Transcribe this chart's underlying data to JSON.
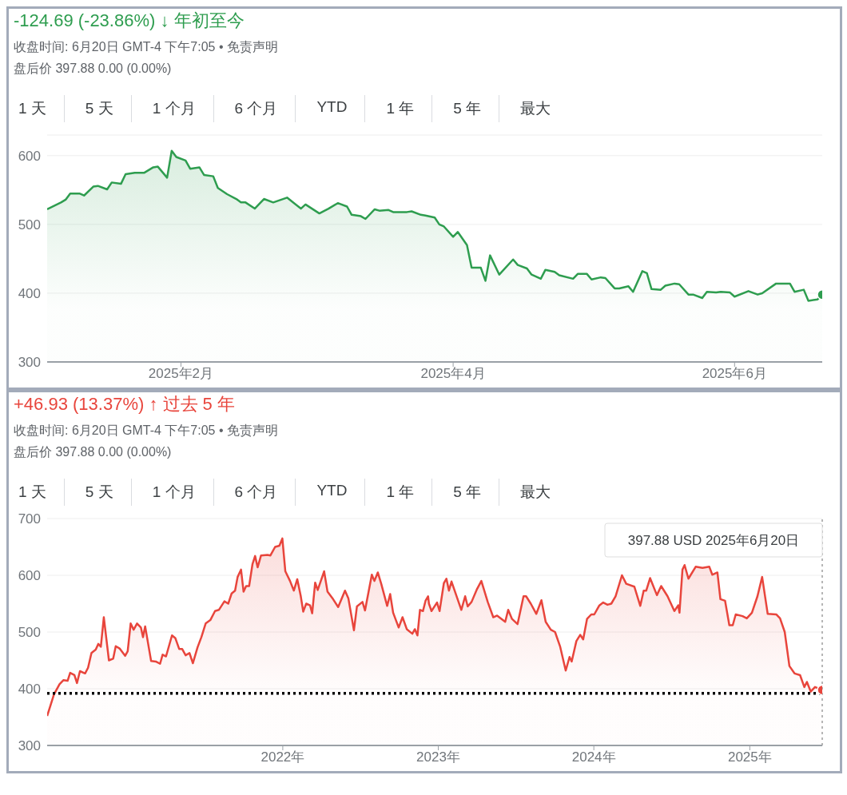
{
  "chart_data": [
    {
      "type": "area",
      "title": "-124.69 (-23.86%) ↓ 年初至今",
      "subtitle": "收盘时间: 6月20日 GMT-4 下午7:05 • 免责声明",
      "annotations": [
        "盘后价 397.88 0.00 (0.00%)",
        "1 天",
        "5 天",
        "1 个月",
        "6 个月",
        "YTD",
        "1 年",
        "5 年",
        "最大"
      ],
      "x": [
        "2025-01-03",
        "2025-01-06",
        "2025-01-07",
        "2025-01-08",
        "2025-01-10",
        "2025-01-11",
        "2025-01-13",
        "2025-01-14",
        "2025-01-16",
        "2025-01-17",
        "2025-01-19",
        "2025-01-20",
        "2025-01-22",
        "2025-01-24",
        "2025-01-26",
        "2025-01-27",
        "2025-01-29",
        "2025-01-30",
        "2025-01-31",
        "2025-02-02",
        "2025-02-03",
        "2025-02-05",
        "2025-02-06",
        "2025-02-08",
        "2025-02-09",
        "2025-02-11",
        "2025-02-13",
        "2025-02-14",
        "2025-02-15",
        "2025-02-17",
        "2025-02-19",
        "2025-02-21",
        "2025-02-24",
        "2025-02-27",
        "2025-02-28",
        "2025-03-03",
        "2025-03-05",
        "2025-03-07",
        "2025-03-09",
        "2025-03-10",
        "2025-03-12",
        "2025-03-13",
        "2025-03-15",
        "2025-03-16",
        "2025-03-18",
        "2025-03-19",
        "2025-03-22",
        "2025-03-23",
        "2025-03-25",
        "2025-03-26",
        "2025-03-28",
        "2025-03-29",
        "2025-03-30",
        "2025-04-01",
        "2025-04-02",
        "2025-04-04",
        "2025-04-05",
        "2025-04-07",
        "2025-04-08",
        "2025-04-09",
        "2025-04-11",
        "2025-04-14",
        "2025-04-15",
        "2025-04-17",
        "2025-04-18",
        "2025-04-20",
        "2025-04-21",
        "2025-04-23",
        "2025-04-24",
        "2025-04-27",
        "2025-04-28",
        "2025-04-30",
        "2025-05-01",
        "2025-05-03",
        "2025-05-04",
        "2025-05-06",
        "2025-05-07",
        "2025-05-09",
        "2025-05-10",
        "2025-05-12",
        "2025-05-13",
        "2025-05-14",
        "2025-05-16",
        "2025-05-17",
        "2025-05-19",
        "2025-05-20",
        "2025-05-22",
        "2025-05-23",
        "2025-05-25",
        "2025-05-26",
        "2025-05-28",
        "2025-05-29",
        "2025-05-31",
        "2025-06-01",
        "2025-06-04",
        "2025-06-06",
        "2025-06-07",
        "2025-06-10",
        "2025-06-13",
        "2025-06-14",
        "2025-06-16",
        "2025-06-17",
        "2025-06-19",
        "2025-06-20"
      ],
      "series": [
        {
          "color": "#2e9d4f",
          "values": [
            522,
            532,
            536,
            545,
            545,
            542,
            555,
            556,
            551,
            561,
            559,
            573,
            575,
            575,
            583,
            584,
            568,
            607,
            598,
            593,
            581,
            583,
            572,
            570,
            553,
            544,
            537,
            532,
            532,
            523,
            537,
            532,
            539,
            523,
            529,
            516,
            523,
            531,
            526,
            514,
            512,
            508,
            522,
            520,
            521,
            518,
            518,
            519,
            514,
            513,
            510,
            500,
            497,
            482,
            489,
            470,
            437,
            437,
            418,
            455,
            427,
            449,
            441,
            436,
            427,
            421,
            434,
            431,
            426,
            421,
            428,
            428,
            420,
            423,
            422,
            407,
            407,
            410,
            402,
            432,
            429,
            406,
            405,
            411,
            414,
            413,
            398,
            398,
            393,
            402,
            401,
            402,
            401,
            395,
            403,
            398,
            400,
            414,
            414,
            402,
            405,
            389,
            391,
            397.88
          ]
        }
      ],
      "xlim": [
        "2025-01-03",
        "2025-06-20"
      ],
      "xticks": [
        {
          "value": "2025-02-01",
          "label": "2025年2月"
        },
        {
          "value": "2025-04-01",
          "label": "2025年4月"
        },
        {
          "value": "2025-06-01",
          "label": "2025年6月"
        }
      ],
      "ylim": [
        300,
        630
      ],
      "yticks": [
        300,
        400,
        500,
        600
      ],
      "grid": "y"
    },
    {
      "type": "area",
      "title": "+46.93 (13.37%) ↑ 过去 5 年",
      "subtitle": "收盘时间: 6月20日 GMT-4 下午7:05 • 免责声明",
      "annotations": [
        "盘后价 397.88 0.00 (0.00%)",
        "1 天",
        "5 天",
        "1 个月",
        "6 个月",
        "YTD",
        "1 年",
        "5 年",
        "最大",
        {
          "text": "397.88 USD  2025年6月20日",
          "x": "2025-06-20"
        }
      ],
      "x": [
        "2020-06-27",
        "2020-07-13",
        "2020-07-26",
        "2020-08-04",
        "2020-08-14",
        "2020-08-20",
        "2020-08-30",
        "2020-09-05",
        "2020-09-12",
        "2020-09-24",
        "2020-10-01",
        "2020-10-09",
        "2020-10-19",
        "2020-10-25",
        "2020-10-31",
        "2020-11-07",
        "2020-11-19",
        "2020-11-29",
        "2020-12-05",
        "2020-12-14",
        "2020-12-27",
        "2021-01-02",
        "2021-01-09",
        "2021-01-16",
        "2021-01-24",
        "2021-02-02",
        "2021-02-07",
        "2021-02-12",
        "2021-02-26",
        "2021-03-09",
        "2021-03-19",
        "2021-03-25",
        "2021-04-02",
        "2021-04-16",
        "2021-04-24",
        "2021-05-03",
        "2021-05-10",
        "2021-05-18",
        "2021-05-27",
        "2021-06-04",
        "2021-06-15",
        "2021-06-24",
        "2021-07-04",
        "2021-07-15",
        "2021-07-26",
        "2021-08-04",
        "2021-08-17",
        "2021-08-26",
        "2021-09-03",
        "2021-09-11",
        "2021-09-17",
        "2021-09-25",
        "2021-10-01",
        "2021-10-07",
        "2021-10-14",
        "2021-10-22",
        "2021-10-28",
        "2021-11-03",
        "2021-11-11",
        "2021-11-26",
        "2021-12-03",
        "2021-12-14",
        "2021-12-24",
        "2021-12-31",
        "2022-01-07",
        "2022-01-18",
        "2022-01-27",
        "2022-02-04",
        "2022-02-12",
        "2022-02-18",
        "2022-02-25",
        "2022-03-06",
        "2022-03-11",
        "2022-03-18",
        "2022-03-24",
        "2022-04-08",
        "2022-04-16",
        "2022-04-29",
        "2022-05-11",
        "2022-05-27",
        "2022-06-04",
        "2022-06-17",
        "2022-06-24",
        "2022-07-07",
        "2022-07-13",
        "2022-07-29",
        "2022-08-04",
        "2022-08-12",
        "2022-08-20",
        "2022-09-03",
        "2022-09-10",
        "2022-09-17",
        "2022-09-30",
        "2022-10-09",
        "2022-10-19",
        "2022-11-01",
        "2022-11-07",
        "2022-11-13",
        "2022-11-19",
        "2022-11-26",
        "2022-12-02",
        "2022-12-08",
        "2022-12-10",
        "2022-12-16",
        "2022-12-29",
        "2023-01-04",
        "2023-01-14",
        "2023-01-20",
        "2023-01-26",
        "2023-02-01",
        "2023-02-24",
        "2023-03-05",
        "2023-03-11",
        "2023-03-20",
        "2023-04-02",
        "2023-04-12",
        "2023-04-27",
        "2023-05-10",
        "2023-05-19",
        "2023-06-07",
        "2023-06-14",
        "2023-06-23",
        "2023-07-06",
        "2023-07-20",
        "2023-07-26",
        "2023-08-06",
        "2023-08-19",
        "2023-08-31",
        "2023-09-10",
        "2023-09-22",
        "2023-10-02",
        "2023-10-14",
        "2023-10-27",
        "2023-11-05",
        "2023-11-10",
        "2023-11-21",
        "2023-11-30",
        "2023-12-07",
        "2023-12-16",
        "2023-12-26",
        "2024-01-02",
        "2024-01-14",
        "2024-01-23",
        "2024-02-02",
        "2024-02-11",
        "2024-02-21",
        "2024-03-07",
        "2024-03-17",
        "2024-04-05",
        "2024-04-19",
        "2024-04-27",
        "2024-05-03",
        "2024-05-12",
        "2024-05-28",
        "2024-06-07",
        "2024-06-22",
        "2024-07-08",
        "2024-07-17",
        "2024-07-20",
        "2024-07-27",
        "2024-08-01",
        "2024-08-10",
        "2024-08-27",
        "2024-09-12",
        "2024-09-28",
        "2024-10-05",
        "2024-10-17",
        "2024-10-24",
        "2024-11-04",
        "2024-11-14",
        "2024-11-22",
        "2024-11-29",
        "2024-12-15",
        "2024-12-25",
        "2025-01-06",
        "2025-01-19",
        "2025-01-30",
        "2025-02-12",
        "2025-03-04",
        "2025-03-13",
        "2025-03-24",
        "2025-04-04",
        "2025-04-16",
        "2025-04-29",
        "2025-05-09",
        "2025-05-15",
        "2025-05-24",
        "2025-06-03",
        "2025-06-20"
      ],
      "series": [
        {
          "color": "#e8453c",
          "values": [
            352,
            390,
            408,
            415,
            414,
            428,
            424,
            410,
            431,
            427,
            437,
            463,
            469,
            479,
            474,
            526,
            450,
            453,
            475,
            471,
            458,
            466,
            515,
            504,
            515,
            508,
            491,
            510,
            449,
            448,
            444,
            460,
            457,
            494,
            489,
            470,
            470,
            459,
            463,
            445,
            473,
            491,
            515,
            521,
            537,
            539,
            554,
            550,
            568,
            573,
            597,
            610,
            571,
            581,
            581,
            620,
            634,
            614,
            635,
            636,
            635,
            650,
            652,
            665,
            607,
            590,
            573,
            593,
            564,
            536,
            550,
            547,
            533,
            587,
            574,
            607,
            571,
            558,
            544,
            573,
            559,
            503,
            545,
            553,
            538,
            601,
            590,
            605,
            585,
            546,
            567,
            534,
            508,
            526,
            505,
            497,
            505,
            494,
            539,
            537,
            555,
            563,
            550,
            537,
            552,
            537,
            586,
            594,
            573,
            589,
            539,
            563,
            545,
            553,
            576,
            590,
            553,
            526,
            529,
            518,
            539,
            523,
            514,
            563,
            563,
            550,
            532,
            556,
            518,
            504,
            500,
            474,
            432,
            456,
            448,
            484,
            495,
            487,
            523,
            531,
            531,
            547,
            552,
            548,
            550,
            563,
            600,
            585,
            580,
            546,
            573,
            573,
            595,
            565,
            581,
            563,
            537,
            547,
            534,
            610,
            618,
            594,
            615,
            613,
            615,
            601,
            605,
            558,
            555,
            512,
            512,
            531,
            528,
            524,
            534,
            563,
            597,
            532,
            531,
            524,
            500,
            440,
            427,
            424,
            403,
            412,
            395,
            403,
            397.88
          ]
        }
      ],
      "xlim": [
        "2020-06-27",
        "2025-06-20"
      ],
      "xticks": [
        {
          "value": "2022-01-01",
          "label": "2022年"
        },
        {
          "value": "2023-01-01",
          "label": "2023年"
        },
        {
          "value": "2024-01-01",
          "label": "2024年"
        },
        {
          "value": "2025-01-01",
          "label": "2025年"
        }
      ],
      "ylim": [
        300,
        700
      ],
      "yticks": [
        300,
        400,
        500,
        600,
        700
      ],
      "grid": "y",
      "ref_lines": [
        {
          "axis": "y",
          "value": 392,
          "color": "#000000",
          "line_style": "dotted"
        },
        {
          "axis": "x",
          "value": "2025-06-20",
          "color": "#9e9e9e",
          "line_style": "dotted"
        }
      ]
    }
  ]
}
